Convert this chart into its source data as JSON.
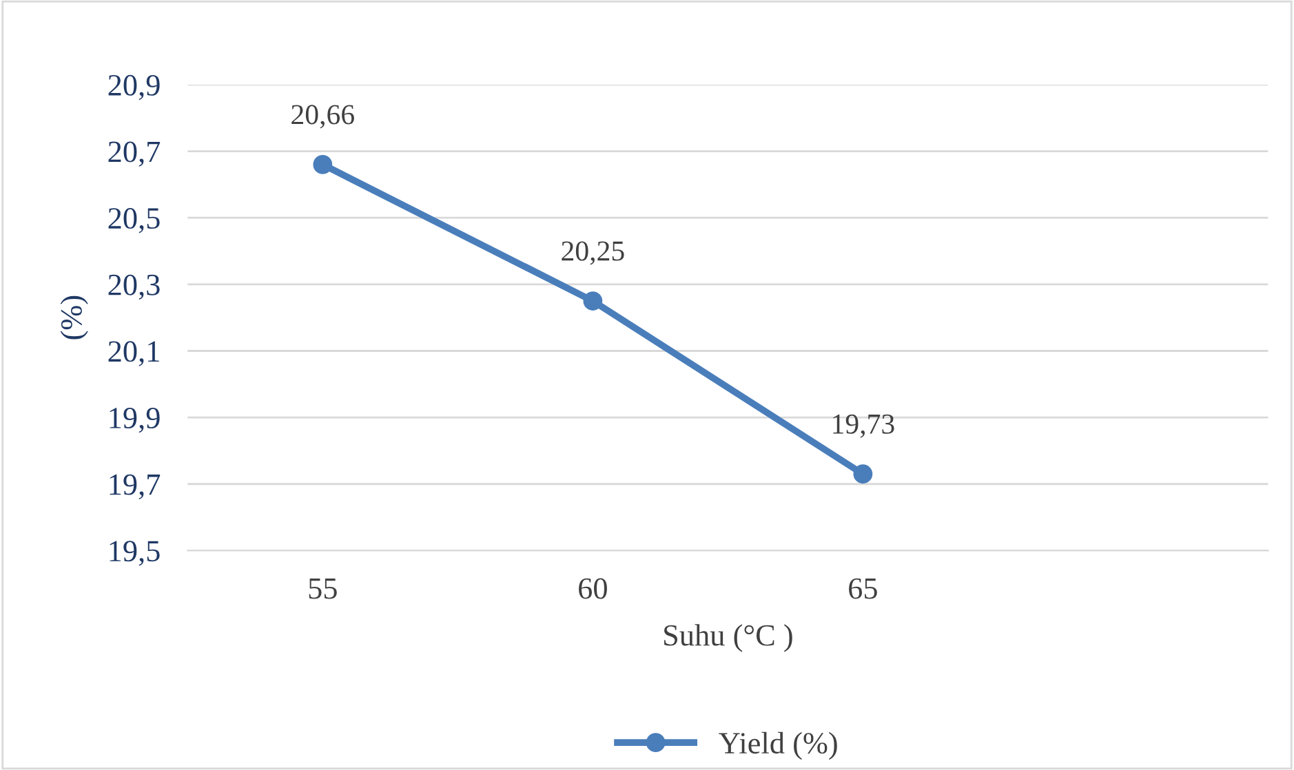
{
  "chart_data": {
    "type": "line",
    "xlabel": "Suhu (°C )",
    "ylabel": "(%)",
    "categories": [
      "55",
      "60",
      "65",
      null
    ],
    "series": [
      {
        "name": "Yield (%)",
        "color": "#4a7ebb",
        "values": [
          20.66,
          20.25,
          19.73,
          null
        ],
        "value_labels": [
          "20,66",
          "20,25",
          "19,73",
          null
        ]
      }
    ],
    "ylim": [
      19.5,
      20.9
    ],
    "yticks": [
      {
        "value": 19.5,
        "label": "19,5"
      },
      {
        "value": 19.7,
        "label": "19,7"
      },
      {
        "value": 19.9,
        "label": "19,9"
      },
      {
        "value": 20.1,
        "label": "20,1"
      },
      {
        "value": 20.3,
        "label": "20,3"
      },
      {
        "value": 20.5,
        "label": "20,5"
      },
      {
        "value": 20.7,
        "label": "20,7"
      },
      {
        "value": 20.9,
        "label": "20,9"
      }
    ],
    "grid": "y",
    "legend": "bottom",
    "marker": "circle",
    "line_style": "solid"
  }
}
